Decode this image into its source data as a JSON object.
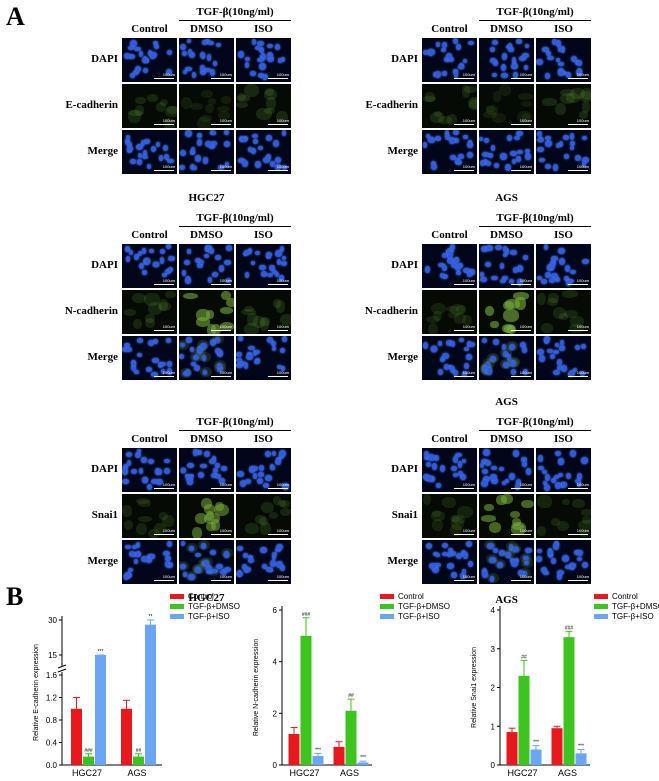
{
  "panel_a_letter": "A",
  "panel_b_letter": "B",
  "header": {
    "treatment": "TGF-β(10ng/ml)",
    "control": "Control",
    "dmso": "DMSO",
    "iso": "ISO"
  },
  "row_labels": {
    "dapi": "DAPI",
    "merge": "Merge",
    "ecad": "E-cadherin",
    "ncad": "N-cadherin",
    "snai": "Snai1"
  },
  "cell_lines": {
    "hgc27": "HGC27",
    "ags": "AGS"
  },
  "scale_text": "100um",
  "colors": {
    "control": "#e8191e",
    "dmso": "#3ec41e",
    "iso": "#6ba6f5",
    "dapi": "#2f5bdc"
  },
  "chart_data": [
    {
      "type": "bar",
      "ylabel": "Relative E-cadherin expression",
      "categories": [
        "HGC27",
        "AGS"
      ],
      "yticks": [
        "0.0",
        "0.4",
        "0.8",
        "1.2",
        "1.6",
        "15",
        "30"
      ],
      "axis_break": true,
      "series": [
        {
          "name": "Control",
          "values": [
            1.0,
            1.0
          ],
          "errors": [
            0.2,
            0.15
          ]
        },
        {
          "name": "TGF-β+DMSO",
          "values": [
            0.15,
            0.15
          ],
          "errors": [
            0.05,
            0.05
          ]
        },
        {
          "name": "TGF-β+ISO",
          "values": [
            12,
            28
          ],
          "errors": [
            1.5,
            2.0
          ]
        }
      ],
      "significance": [
        [
          "",
          ""
        ],
        [
          "###",
          "##"
        ],
        [
          "***",
          "**"
        ]
      ]
    },
    {
      "type": "bar",
      "ylabel": "Relative N-cadherin expression",
      "categories": [
        "HGC27",
        "AGS"
      ],
      "ylim": [
        0,
        6
      ],
      "yticks": [
        "0",
        "2",
        "4",
        "6"
      ],
      "series": [
        {
          "name": "Control",
          "values": [
            1.2,
            0.7
          ],
          "errors": [
            0.25,
            0.2
          ]
        },
        {
          "name": "TGF-β+DMSO",
          "values": [
            5.0,
            2.1
          ],
          "errors": [
            0.7,
            0.45
          ]
        },
        {
          "name": "TGF-β+ISO",
          "values": [
            0.35,
            0.1
          ],
          "errors": [
            0.1,
            0.05
          ]
        }
      ],
      "significance": [
        [
          "",
          ""
        ],
        [
          "###",
          "##"
        ],
        [
          "***",
          "***"
        ]
      ]
    },
    {
      "type": "bar",
      "ylabel": "Relative Snai1 expression",
      "categories": [
        "HGC27",
        "AGS"
      ],
      "ylim": [
        0,
        4
      ],
      "yticks": [
        "0",
        "1",
        "2",
        "3",
        "4"
      ],
      "series": [
        {
          "name": "Control",
          "values": [
            0.85,
            0.95
          ],
          "errors": [
            0.1,
            0.05
          ]
        },
        {
          "name": "TGF-β+DMSO",
          "values": [
            2.3,
            3.3
          ],
          "errors": [
            0.4,
            0.15
          ]
        },
        {
          "name": "TGF-β+ISO",
          "values": [
            0.4,
            0.3
          ],
          "errors": [
            0.1,
            0.1
          ]
        }
      ],
      "significance": [
        [
          "",
          ""
        ],
        [
          "##",
          "###"
        ],
        [
          "***",
          "***"
        ]
      ]
    }
  ]
}
